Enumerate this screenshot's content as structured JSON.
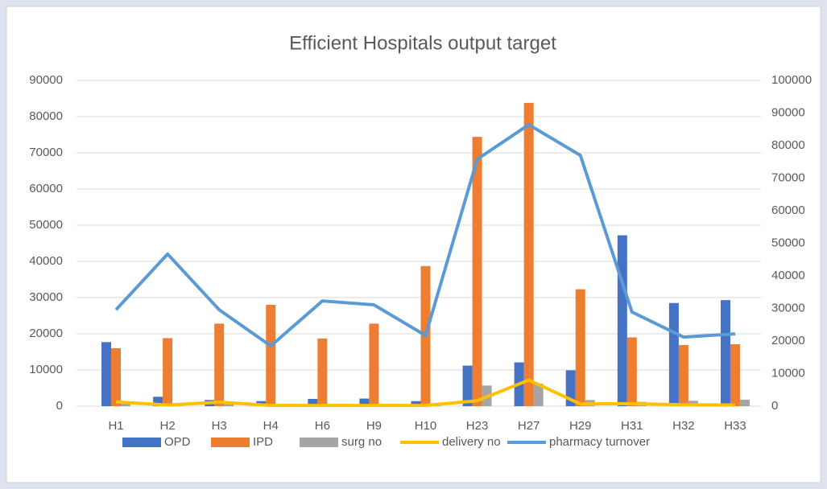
{
  "chart_data": {
    "type": "bar",
    "title": "Efficient Hospitals output target",
    "categories": [
      "H1",
      "H2",
      "H3",
      "H4",
      "H6",
      "H9",
      "H10",
      "H23",
      "H27",
      "H29",
      "H31",
      "H32",
      "H33"
    ],
    "series": [
      {
        "name": "OPD",
        "color": "#4472c4",
        "type": "bar",
        "values": [
          17700,
          2600,
          1700,
          1400,
          2000,
          2100,
          1400,
          11200,
          12100,
          9900,
          47200,
          28500,
          29300
        ]
      },
      {
        "name": "IPD",
        "color": "#ed7d31",
        "type": "bar",
        "values": [
          16000,
          18800,
          22800,
          28000,
          18700,
          22800,
          38700,
          74400,
          83800,
          32300,
          19000,
          16900,
          17100
        ]
      },
      {
        "name": "surg no",
        "color": "#a5a5a5",
        "type": "bar",
        "values": [
          1300,
          500,
          800,
          300,
          400,
          500,
          400,
          5700,
          6200,
          1700,
          1200,
          1500,
          1800
        ]
      },
      {
        "name": "delivery no",
        "color": "#ffc000",
        "type": "line",
        "values": [
          1200,
          300,
          1100,
          200,
          200,
          200,
          200,
          1500,
          7200,
          600,
          700,
          400,
          300
        ]
      },
      {
        "name": "pharmacy turnover",
        "color": "#5b9bd5",
        "type": "line",
        "axis": "y2",
        "values": [
          29600,
          46700,
          29600,
          18500,
          32300,
          31100,
          21700,
          75800,
          86400,
          77000,
          28900,
          21200,
          22200
        ]
      }
    ],
    "ylim": [
      0,
      90000
    ],
    "yticks": [
      0,
      10000,
      20000,
      30000,
      40000,
      50000,
      60000,
      70000,
      80000,
      90000
    ],
    "y2lim": [
      0,
      100000
    ],
    "y2ticks": [
      0,
      10000,
      20000,
      30000,
      40000,
      50000,
      60000,
      70000,
      80000,
      90000,
      100000
    ],
    "grid": true,
    "legend": "bottom"
  }
}
